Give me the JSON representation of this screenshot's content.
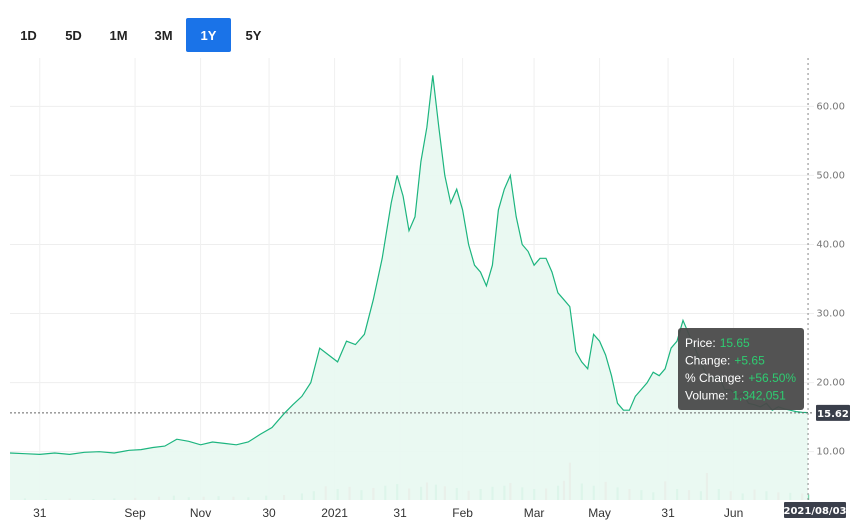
{
  "range_buttons": [
    {
      "label": "1D",
      "active": false
    },
    {
      "label": "5D",
      "active": false
    },
    {
      "label": "1M",
      "active": false
    },
    {
      "label": "3M",
      "active": false
    },
    {
      "label": "1Y",
      "active": true
    },
    {
      "label": "5Y",
      "active": false
    }
  ],
  "colors": {
    "line": "#1db57f",
    "fill": "#e8f8f1",
    "vol_up": "#7fd8b0",
    "vol_down": "#f4a3ad",
    "active_button": "#1a73e8",
    "tooltip_bg": "#4a4a4a"
  },
  "tooltip": {
    "price_label": "Price:",
    "price_value": "15.65",
    "change_label": "Change:",
    "change_value": "+5.65",
    "pct_label": "% Change:",
    "pct_value": "+56.50%",
    "volume_label": "Volume:",
    "volume_value": "1,342,051"
  },
  "current_price_badge": "15.62",
  "date_badge": "2021/08/03",
  "chart_data": {
    "type": "area",
    "y_ticks": [
      10,
      20,
      30,
      40,
      50,
      60
    ],
    "y_tick_labels": [
      "10.00",
      "20.00",
      "30.00",
      "40.00",
      "50.00",
      "60.00"
    ],
    "ylim": [
      3,
      67
    ],
    "x_ticks": [
      {
        "label": "31",
        "x": 10
      },
      {
        "label": "Sep",
        "x": 42
      },
      {
        "label": "Nov",
        "x": 64
      },
      {
        "label": "30",
        "x": 87
      },
      {
        "label": "2021",
        "x": 109
      },
      {
        "label": "31",
        "x": 131
      },
      {
        "label": "Feb",
        "x": 152
      },
      {
        "label": "Mar",
        "x": 176
      },
      {
        "label": "May",
        "x": 198
      },
      {
        "label": "31",
        "x": 221
      },
      {
        "label": "Jun",
        "x": 243
      }
    ],
    "xlim": [
      0,
      270
    ],
    "reference_price": 15.62,
    "series": [
      {
        "points": [
          [
            0,
            9.8
          ],
          [
            5,
            9.7
          ],
          [
            10,
            9.6
          ],
          [
            15,
            9.8
          ],
          [
            20,
            9.6
          ],
          [
            25,
            9.9
          ],
          [
            30,
            10
          ],
          [
            35,
            9.8
          ],
          [
            40,
            10.2
          ],
          [
            44,
            10.3
          ],
          [
            48,
            10.6
          ],
          [
            52,
            10.8
          ],
          [
            56,
            11.8
          ],
          [
            60,
            11.5
          ],
          [
            64,
            11.0
          ],
          [
            68,
            11.4
          ],
          [
            72,
            11.2
          ],
          [
            76,
            11.0
          ],
          [
            80,
            11.4
          ],
          [
            84,
            12.5
          ],
          [
            88,
            13.5
          ],
          [
            92,
            15.5
          ],
          [
            95,
            16.8
          ],
          [
            98,
            18.0
          ],
          [
            101,
            20.0
          ],
          [
            104,
            25.0
          ],
          [
            107,
            24.0
          ],
          [
            110,
            23.0
          ],
          [
            113,
            26.0
          ],
          [
            116,
            25.5
          ],
          [
            119,
            27.0
          ],
          [
            122,
            32.0
          ],
          [
            125,
            38.0
          ],
          [
            128,
            46.0
          ],
          [
            130,
            50.0
          ],
          [
            132,
            47.0
          ],
          [
            134,
            42.0
          ],
          [
            136,
            44.0
          ],
          [
            138,
            52.0
          ],
          [
            140,
            57.0
          ],
          [
            142,
            64.5
          ],
          [
            144,
            57.0
          ],
          [
            146,
            50.0
          ],
          [
            148,
            46.0
          ],
          [
            150,
            48.0
          ],
          [
            152,
            45.0
          ],
          [
            154,
            40.0
          ],
          [
            156,
            37.0
          ],
          [
            158,
            36.0
          ],
          [
            160,
            34.0
          ],
          [
            162,
            37.0
          ],
          [
            164,
            45.0
          ],
          [
            166,
            48.0
          ],
          [
            168,
            50.0
          ],
          [
            170,
            44.0
          ],
          [
            172,
            40.0
          ],
          [
            174,
            39.0
          ],
          [
            176,
            37.0
          ],
          [
            178,
            38.0
          ],
          [
            180,
            38.0
          ],
          [
            182,
            36.0
          ],
          [
            184,
            33.0
          ],
          [
            186,
            32.0
          ],
          [
            188,
            31.0
          ],
          [
            190,
            24.5
          ],
          [
            192,
            23.0
          ],
          [
            194,
            22.0
          ],
          [
            196,
            27.0
          ],
          [
            198,
            26.0
          ],
          [
            200,
            24.0
          ],
          [
            202,
            21.0
          ],
          [
            204,
            17.0
          ],
          [
            206,
            16.0
          ],
          [
            208,
            16.0
          ],
          [
            210,
            18.0
          ],
          [
            212,
            19.0
          ],
          [
            214,
            20.0
          ],
          [
            216,
            21.5
          ],
          [
            218,
            21.0
          ],
          [
            220,
            22.0
          ],
          [
            222,
            25.0
          ],
          [
            224,
            26.0
          ],
          [
            226,
            29.0
          ],
          [
            228,
            27.0
          ],
          [
            230,
            25.0
          ],
          [
            232,
            23.0
          ],
          [
            234,
            21.0
          ],
          [
            236,
            20.5
          ],
          [
            238,
            21.0
          ],
          [
            240,
            19.0
          ],
          [
            242,
            19.0
          ],
          [
            244,
            18.0
          ],
          [
            246,
            18.5
          ],
          [
            248,
            17.0
          ],
          [
            250,
            16.8
          ],
          [
            252,
            16.5
          ],
          [
            254,
            17.0
          ],
          [
            256,
            16.0
          ],
          [
            258,
            16.5
          ],
          [
            260,
            16.2
          ],
          [
            262,
            16.0
          ],
          [
            264,
            15.8
          ],
          [
            266,
            15.7
          ],
          [
            268,
            15.65
          ]
        ]
      }
    ],
    "volume": [
      [
        5,
        0.3,
        1
      ],
      [
        12,
        0.2,
        1
      ],
      [
        20,
        0.3,
        0
      ],
      [
        28,
        0.2,
        1
      ],
      [
        35,
        0.3,
        1
      ],
      [
        42,
        0.4,
        0
      ],
      [
        50,
        0.6,
        0
      ],
      [
        55,
        0.8,
        1
      ],
      [
        60,
        0.5,
        1
      ],
      [
        65,
        0.6,
        0
      ],
      [
        70,
        0.7,
        1
      ],
      [
        75,
        0.6,
        0
      ],
      [
        80,
        0.5,
        1
      ],
      [
        86,
        0.8,
        1
      ],
      [
        92,
        0.9,
        0
      ],
      [
        98,
        1.2,
        1
      ],
      [
        102,
        1.6,
        1
      ],
      [
        106,
        2.5,
        0
      ],
      [
        110,
        2.0,
        1
      ],
      [
        114,
        2.4,
        0
      ],
      [
        118,
        1.8,
        1
      ],
      [
        122,
        2.2,
        0
      ],
      [
        126,
        2.6,
        1
      ],
      [
        130,
        2.9,
        1
      ],
      [
        134,
        2.1,
        0
      ],
      [
        138,
        2.4,
        1
      ],
      [
        140,
        3.2,
        0
      ],
      [
        143,
        2.8,
        1
      ],
      [
        146,
        2.5,
        0
      ],
      [
        150,
        2.2,
        1
      ],
      [
        154,
        1.7,
        0
      ],
      [
        158,
        2.0,
        1
      ],
      [
        162,
        2.4,
        1
      ],
      [
        166,
        2.6,
        1
      ],
      [
        168,
        3.1,
        0
      ],
      [
        172,
        2.3,
        1
      ],
      [
        176,
        2.0,
        1
      ],
      [
        180,
        2.1,
        0
      ],
      [
        184,
        2.6,
        1
      ],
      [
        186,
        3.5,
        0
      ],
      [
        188,
        6.8,
        0
      ],
      [
        192,
        3.0,
        1
      ],
      [
        196,
        2.6,
        1
      ],
      [
        200,
        3.3,
        0
      ],
      [
        204,
        2.3,
        1
      ],
      [
        208,
        2.0,
        0
      ],
      [
        212,
        1.8,
        1
      ],
      [
        216,
        1.4,
        1
      ],
      [
        220,
        3.4,
        0
      ],
      [
        224,
        2.0,
        1
      ],
      [
        228,
        1.8,
        0
      ],
      [
        232,
        1.6,
        1
      ],
      [
        234,
        4.9,
        0
      ],
      [
        238,
        2.0,
        1
      ],
      [
        242,
        1.6,
        0
      ],
      [
        246,
        1.2,
        1
      ],
      [
        250,
        1.9,
        0
      ],
      [
        254,
        1.6,
        1
      ],
      [
        258,
        1.4,
        0
      ],
      [
        262,
        1.3,
        1
      ],
      [
        266,
        1.2,
        0
      ],
      [
        268,
        1.0,
        1
      ]
    ]
  }
}
